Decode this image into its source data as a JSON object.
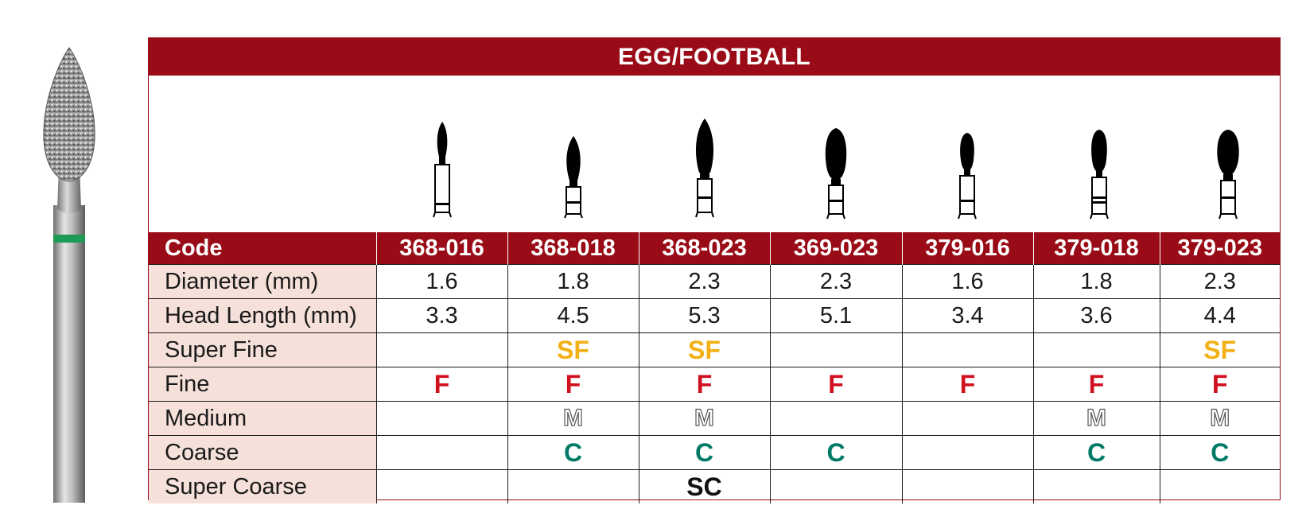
{
  "title": "EGG/FOOTBALL",
  "columns": [
    "368-016",
    "368-018",
    "368-023",
    "369-023",
    "379-016",
    "379-018",
    "379-023"
  ],
  "rows": [
    {
      "label": "Code",
      "values": [
        "368-016",
        "368-018",
        "368-023",
        "369-023",
        "379-016",
        "379-018",
        "379-023"
      ]
    },
    {
      "label": "Diameter (mm)",
      "values": [
        "1.6",
        "1.8",
        "2.3",
        "2.3",
        "1.6",
        "1.8",
        "2.3"
      ]
    },
    {
      "label": "Head Length (mm)",
      "values": [
        "3.3",
        "4.5",
        "5.3",
        "5.1",
        "3.4",
        "3.6",
        "4.4"
      ]
    },
    {
      "label": "Super Fine",
      "values": [
        "",
        "SF",
        "SF",
        "",
        "",
        "",
        "SF"
      ]
    },
    {
      "label": "Fine",
      "values": [
        "F",
        "F",
        "F",
        "F",
        "F",
        "F",
        "F"
      ]
    },
    {
      "label": "Medium",
      "values": [
        "",
        "M",
        "M",
        "",
        "",
        "M",
        "M"
      ]
    },
    {
      "label": "Coarse",
      "values": [
        "",
        "C",
        "C",
        "C",
        "",
        "C",
        "C"
      ]
    },
    {
      "label": "Super Coarse",
      "values": [
        "",
        "",
        "SC",
        "",
        "",
        "",
        ""
      ]
    }
  ],
  "grit_colors": {
    "super_fine": "#f2b015",
    "fine": "#d0101e",
    "medium": "#ffffff",
    "coarse": "#007a66",
    "super_coarse": "#111111"
  },
  "colors": {
    "header_bg": "#990c17",
    "label_bg": "#f5e1d9",
    "band": "#1f9a55"
  },
  "icons": {
    "photo": "bur-photo-icon",
    "profile": "bur-profile-icon"
  }
}
